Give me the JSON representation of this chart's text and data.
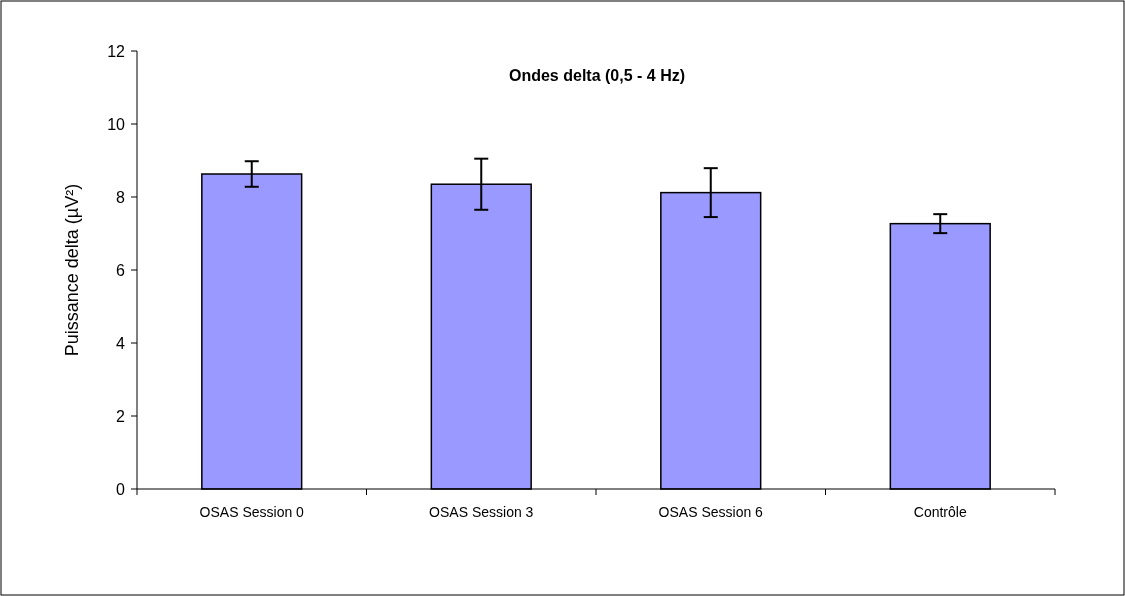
{
  "chart_data": {
    "type": "bar",
    "title": "Ondes delta (0,5 - 4 Hz)",
    "ylabel": "Puissance delta (µV²)",
    "categories": [
      "OSAS Session 0",
      "OSAS Session 3",
      "OSAS Session 6",
      "Contrôle"
    ],
    "values": [
      8.63,
      8.35,
      8.12,
      7.27
    ],
    "errors": [
      0.35,
      0.7,
      0.67,
      0.26
    ],
    "color": "#9999ff",
    "ylim": [
      0,
      12
    ],
    "yticks": [
      0,
      2,
      4,
      6,
      8,
      10,
      12
    ],
    "grid": false
  }
}
